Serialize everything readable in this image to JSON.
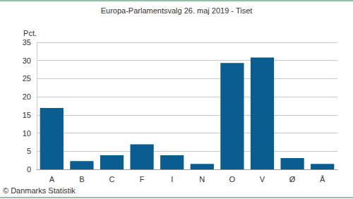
{
  "chart_data": {
    "type": "bar",
    "title": "Europa-Parlamentsvalg 26. maj 2019 - Tiset",
    "y_label": "Pct.",
    "annotations": [
      "© Danmarks Statistik"
    ],
    "categories": [
      "A",
      "B",
      "C",
      "F",
      "I",
      "N",
      "O",
      "V",
      "Ø",
      "Å"
    ],
    "values": [
      16.9,
      2.3,
      3.9,
      6.9,
      3.9,
      1.5,
      29.3,
      30.8,
      3.1,
      1.5
    ],
    "color": "#0a5d91",
    "ylim": [
      0,
      35
    ],
    "yticks": [
      0,
      5,
      10,
      15,
      20,
      25,
      30,
      35
    ],
    "grid": true
  }
}
